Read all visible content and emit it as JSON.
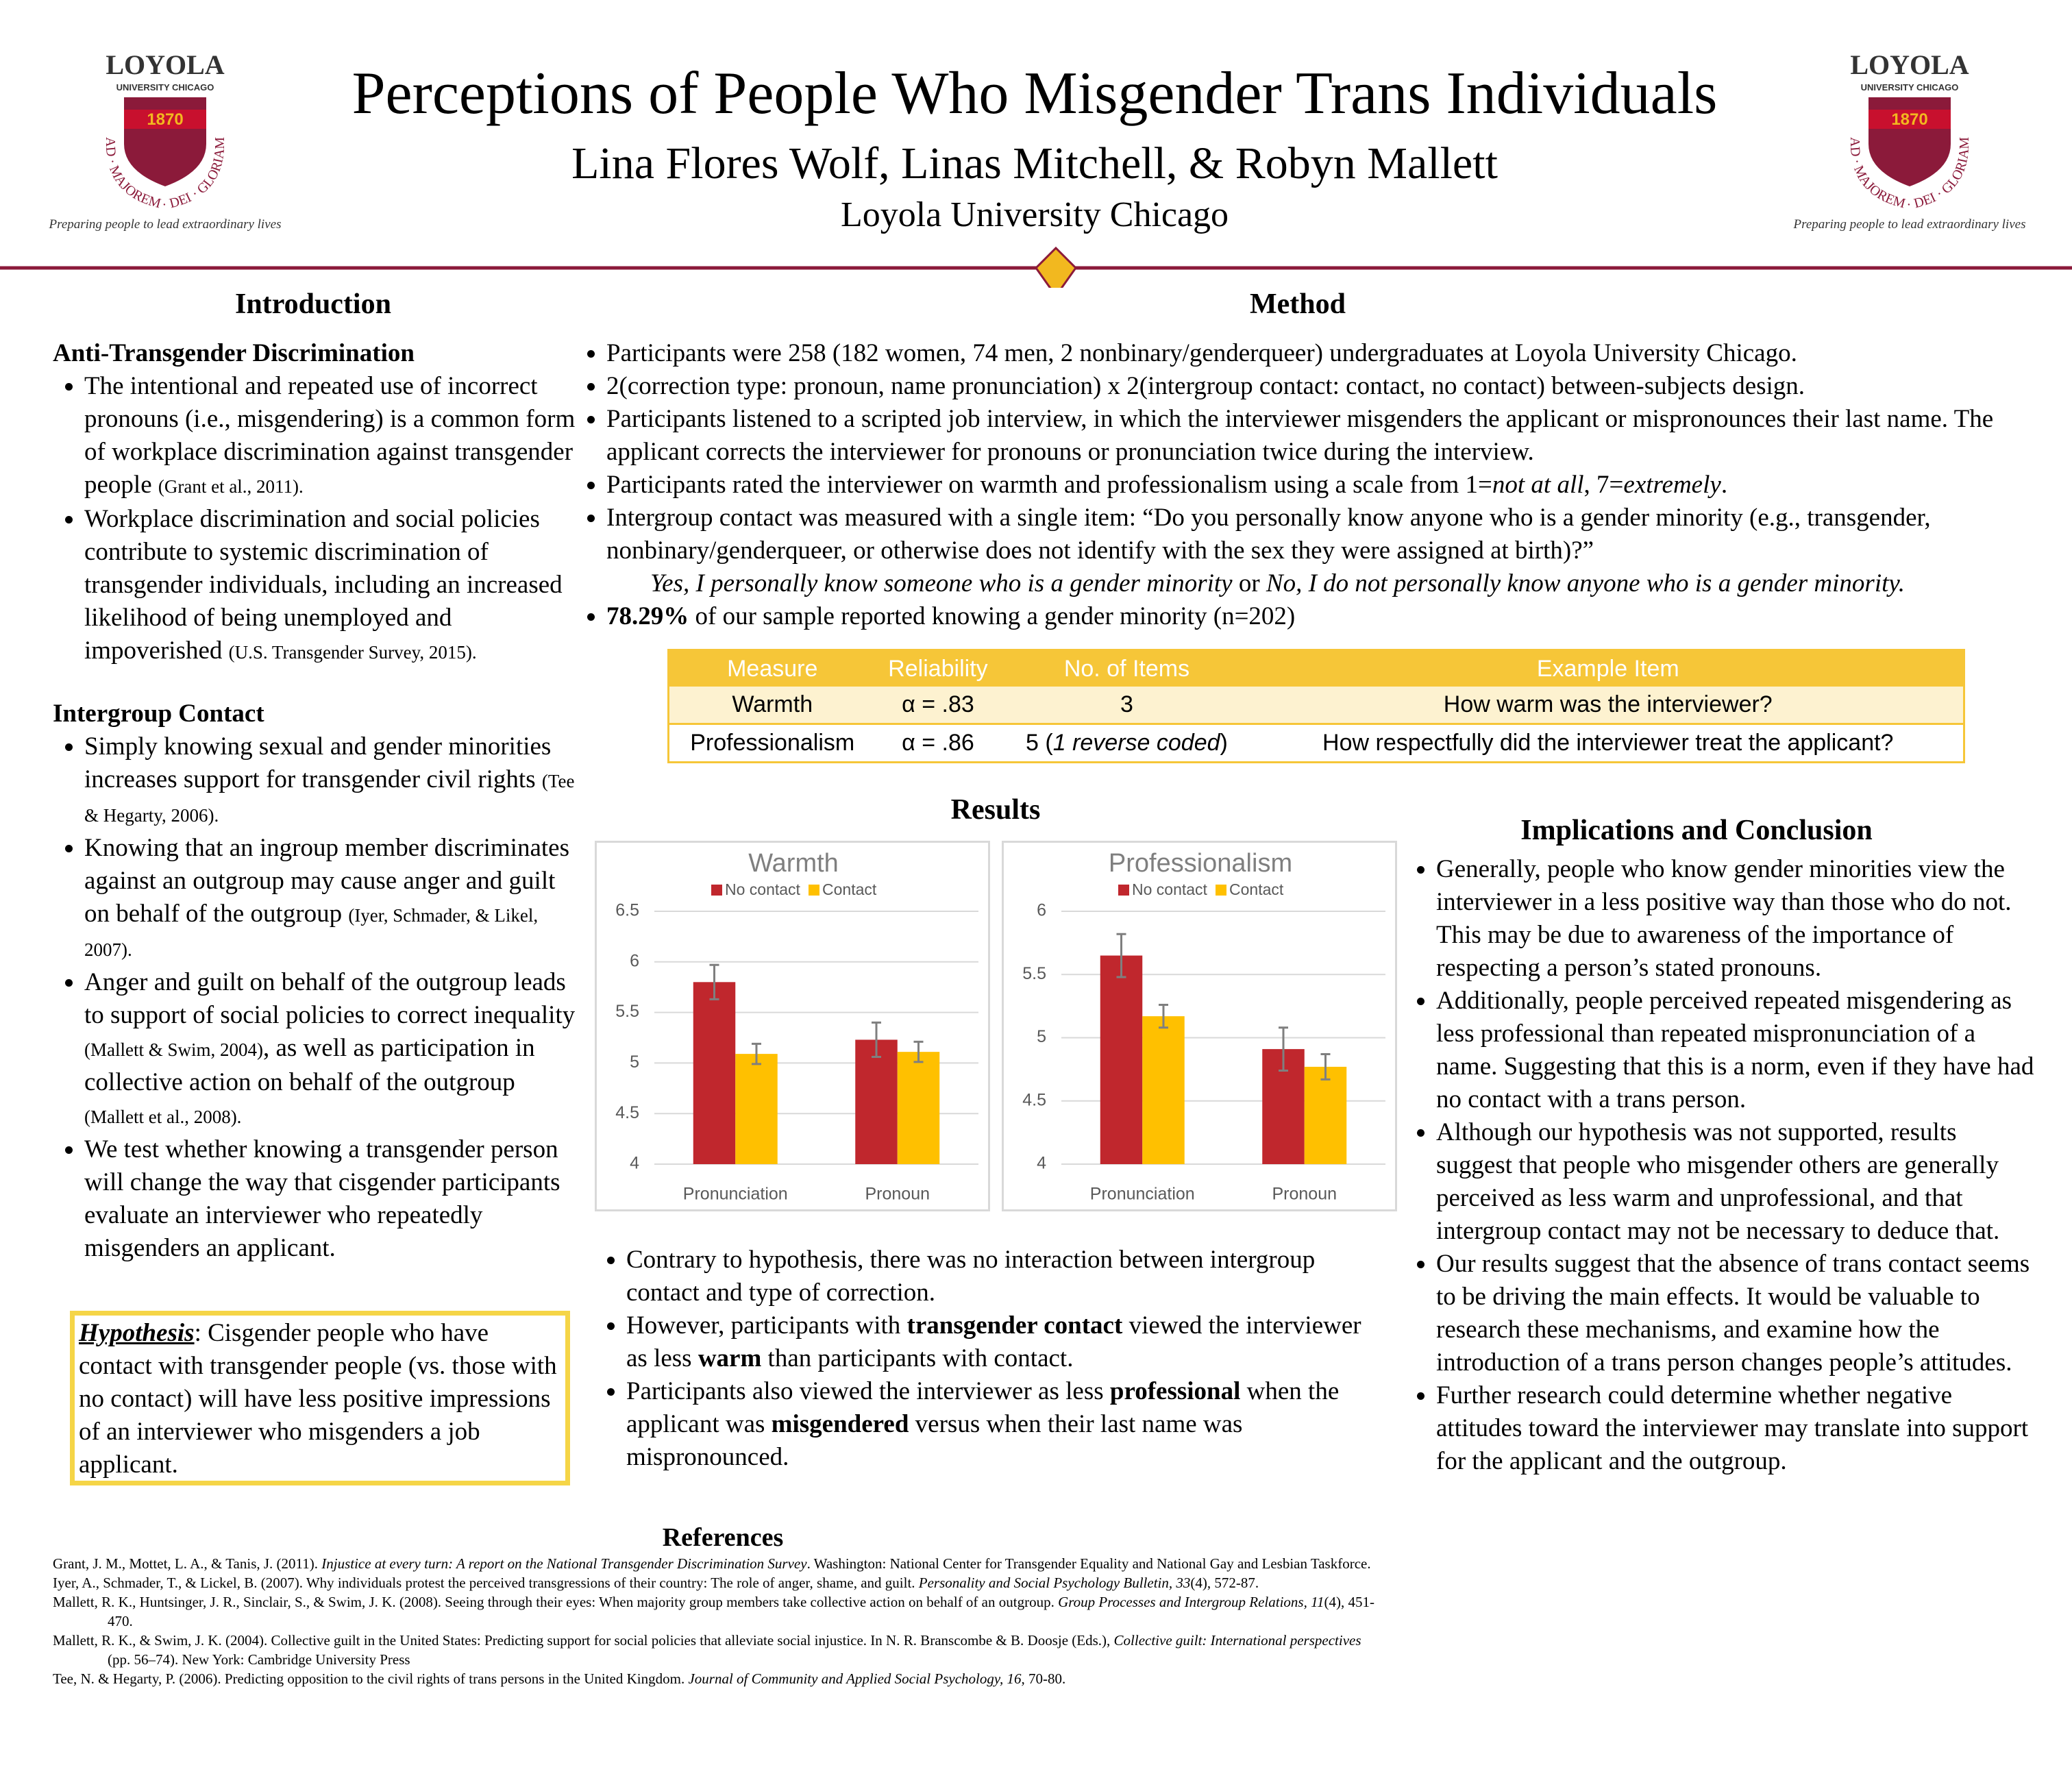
{
  "header": {
    "title": "Perceptions of People Who Misgender Trans Individuals",
    "authors": "Lina Flores Wolf, Linas Mitchell, & Robyn Mallett",
    "affiliation": "Loyola University Chicago",
    "logo": {
      "name": "LOYOLA",
      "sub": "UNIVERSITY CHICAGO",
      "year": "1870",
      "motto": "AD · MAJOREM · DEI · GLORIAM",
      "tagline": "Preparing people to lead extraordinary lives"
    }
  },
  "introduction": {
    "heading": "Introduction",
    "sections": [
      {
        "heading": "Anti-Transgender Discrimination",
        "bullets": [
          [
            "The intentional and repeated use of incorrect pronouns (i.e., misgendering) is a common form of workplace discrimination against transgender people ",
            {
              "small": "(Grant et al., 2011)."
            }
          ],
          [
            "Workplace discrimination and social policies contribute to systemic discrimination of transgender individuals, including an increased likelihood of being unemployed and impoverished ",
            {
              "small": "(U.S. Transgender Survey, 2015)."
            }
          ]
        ]
      },
      {
        "heading": "Intergroup Contact",
        "bullets": [
          [
            "Simply knowing sexual and gender minorities increases support for transgender civil rights ",
            {
              "small": "(Tee & Hegarty, 2006)."
            }
          ],
          [
            "Knowing that an ingroup member discriminates against an outgroup may cause anger and guilt on behalf of the outgroup ",
            {
              "small": "(Iyer, Schmader, & Likel, 2007)."
            }
          ],
          [
            "Anger and guilt on behalf of the outgroup leads to support of social policies to correct inequality ",
            {
              "small": "(Mallett & Swim, 2004)"
            },
            ", as well as participation in collective action on behalf of the outgroup ",
            {
              "small": "(Mallett et al., 2008)."
            }
          ],
          [
            "We test whether knowing a transgender person will change the way that cisgender participants evaluate an interviewer who repeatedly misgenders an applicant."
          ]
        ]
      }
    ],
    "hypothesis": {
      "label": "Hypothesis",
      "text": ": Cisgender people who have contact with transgender people (vs. those with no contact) will have less positive impressions of an interviewer who misgenders a job applicant."
    }
  },
  "method": {
    "heading": "Method",
    "bullets": [
      [
        "Participants were 258 (182 women, 74 men, 2 nonbinary/genderqueer) undergraduates at Loyola University Chicago."
      ],
      [
        "2(correction type: pronoun, name pronunciation) x 2(intergroup contact: contact, no contact) between-subjects design."
      ],
      [
        "Participants listened to a scripted job interview, in which the interviewer misgenders the applicant or mispronounces their last name. The applicant corrects the interviewer for pronouns or pronunciation twice during the interview."
      ],
      [
        "Participants rated the interviewer on warmth and professionalism using a scale from 1=",
        {
          "i": "not at all"
        },
        ", 7=",
        {
          "i": "extremely"
        },
        "."
      ],
      [
        "Intergroup contact was measured with a single item: “Do you personally know anyone who is a gender minority (e.g., transgender, nonbinary/genderqueer, or otherwise does not identify with the sex they were assigned at birth)?”"
      ]
    ],
    "options": [
      {
        "i": "Yes, I personally know someone who is a gender minority"
      },
      " or ",
      {
        "i": "No, I do not personally know anyone who is a gender minority."
      }
    ],
    "result": [
      {
        "b": "78.29%"
      },
      " of our sample reported knowing a gender minority (n=202)"
    ],
    "table": {
      "columns": [
        "Measure",
        "Reliability",
        "No. of Items",
        "Example Item"
      ],
      "rows": [
        [
          "Warmth",
          "α = .83",
          "3",
          "How warm was the interviewer?"
        ],
        [
          "Professionalism",
          "α = .86",
          [
            "5 (",
            {
              "i": "1 reverse coded"
            },
            ")"
          ],
          "How respectfully did the interviewer treat the applicant?"
        ]
      ]
    }
  },
  "results": {
    "heading": "Results",
    "bullets": [
      [
        "Contrary to hypothesis, there was no interaction between intergroup contact and type of correction."
      ],
      [
        "However, participants with ",
        {
          "b": "transgender contact"
        },
        " viewed the interviewer as less ",
        {
          "b": "warm"
        },
        " than participants with contact."
      ],
      [
        "Participants also viewed the interviewer as less ",
        {
          "b": "professional"
        },
        " when the applicant was ",
        {
          "b": "misgendered"
        },
        " versus when their last name was mispronounced."
      ]
    ]
  },
  "chart_data": [
    {
      "type": "bar",
      "title": "Warmth",
      "categories": [
        "Pronunciation",
        "Pronoun"
      ],
      "series": [
        {
          "name": "No contact",
          "color": "#c0272d",
          "values": [
            5.8,
            5.23
          ],
          "errors": [
            0.17,
            0.17
          ]
        },
        {
          "name": "Contact",
          "color": "#ffc000",
          "values": [
            5.09,
            5.11
          ],
          "errors": [
            0.1,
            0.1
          ]
        }
      ],
      "ylim": [
        4,
        6.5
      ],
      "yticks": [
        4,
        4.5,
        5,
        5.5,
        6,
        6.5
      ],
      "grid": true
    },
    {
      "type": "bar",
      "title": "Professionalism",
      "categories": [
        "Pronunciation",
        "Pronoun"
      ],
      "series": [
        {
          "name": "No contact",
          "color": "#c0272d",
          "values": [
            5.65,
            4.91
          ],
          "errors": [
            0.17,
            0.17
          ]
        },
        {
          "name": "Contact",
          "color": "#ffc000",
          "values": [
            5.17,
            4.77
          ],
          "errors": [
            0.09,
            0.1
          ]
        }
      ],
      "ylim": [
        4,
        6
      ],
      "yticks": [
        4,
        4.5,
        5,
        5.5,
        6
      ],
      "grid": true
    }
  ],
  "implications": {
    "heading": "Implications and Conclusion",
    "bullets": [
      [
        "Generally, people who know gender minorities view the interviewer in a less positive way than those who do not. This may be due to awareness of the importance of respecting  a person’s stated pronouns."
      ],
      [
        "Additionally, people perceived repeated misgendering as less professional than repeated mispronunciation of a name. Suggesting that this is a norm, even if they have had no contact with a trans person."
      ],
      [
        "Although our hypothesis was not supported, results suggest that people who misgender others are generally perceived as less warm and unprofessional, and that intergroup contact may not be necessary to deduce that."
      ],
      [
        "Our results suggest that the absence of trans contact seems to be driving the main effects. It would be valuable to research these mechanisms, and examine how the introduction of a trans person changes people’s attitudes."
      ],
      [
        "Further research could determine whether negative attitudes toward the interviewer may translate into support for the applicant and the outgroup."
      ]
    ]
  },
  "references": {
    "heading": "References",
    "items": [
      [
        "Grant, J. M., Mottet, L. A., & Tanis, J. (2011). ",
        {
          "i": "Injustice at every turn: A report on the National Transgender Discrimination Survey"
        },
        ". Washington: National Center for Transgender Equality and National Gay and Lesbian Taskforce."
      ],
      [
        "Iyer, A., Schmader, T., & Lickel, B. (2007). Why individuals protest the perceived transgressions of their country: The role of anger, shame, and guilt. ",
        {
          "i": "Personality and Social Psychology Bulletin, 33"
        },
        "(4), 572-87."
      ],
      [
        "Mallett, R. K., Huntsinger, J. R., Sinclair, S., & Swim, J. K. (2008). Seeing through their eyes: When majority group members take collective action on behalf of an outgroup. ",
        {
          "i": "Group Processes and Intergroup Relations, 11"
        },
        "(4), 451-470."
      ],
      [
        "Mallett, R. K., & Swim, J. K. (2004). Collective guilt in the United States: Predicting support for social policies that alleviate social injustice. In N. R. Branscombe & B. Doosje (Eds.), ",
        {
          "i": "Collective guilt: International perspectives"
        },
        " (pp. 56–74). New York: Cambridge University Press"
      ],
      [
        "Tee, N. & Hegarty, P. (2006). Predicting opposition to the civil rights of trans persons in the United Kingdom. ",
        {
          "i": "Journal of Community and Applied Social Psychology, 16"
        },
        ", 70-80."
      ]
    ]
  }
}
